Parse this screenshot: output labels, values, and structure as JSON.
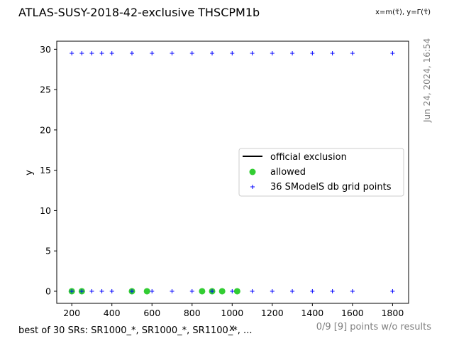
{
  "chart_data": {
    "type": "scatter",
    "title": "ATLAS-SUSY-2018-42-exclusive THSCPM1b",
    "xlabel": "x",
    "ylabel": "y",
    "xlim": [
      125,
      1880
    ],
    "ylim": [
      -1.5,
      31
    ],
    "xticks": [
      200,
      400,
      600,
      800,
      1000,
      1200,
      1400,
      1600,
      1800
    ],
    "yticks": [
      0,
      5,
      10,
      15,
      20,
      25,
      30
    ],
    "grid": false,
    "legend_position": "center-right",
    "series": [
      {
        "name": "official exclusion",
        "kind": "line",
        "color": "#000000",
        "points": []
      },
      {
        "name": "allowed",
        "kind": "marker-circle",
        "color": "#32cd32",
        "points": [
          [
            200,
            0
          ],
          [
            250,
            0
          ],
          [
            500,
            0
          ],
          [
            575,
            0
          ],
          [
            850,
            0
          ],
          [
            900,
            0
          ],
          [
            950,
            0
          ],
          [
            1025,
            0
          ]
        ]
      },
      {
        "name": "36 SModelS db grid points",
        "kind": "marker-plus",
        "color": "#0000ff",
        "points": [
          [
            200,
            0
          ],
          [
            250,
            0
          ],
          [
            300,
            0
          ],
          [
            350,
            0
          ],
          [
            400,
            0
          ],
          [
            500,
            0
          ],
          [
            600,
            0
          ],
          [
            700,
            0
          ],
          [
            800,
            0
          ],
          [
            900,
            0
          ],
          [
            1000,
            0
          ],
          [
            1100,
            0
          ],
          [
            1200,
            0
          ],
          [
            1300,
            0
          ],
          [
            1400,
            0
          ],
          [
            1500,
            0
          ],
          [
            1600,
            0
          ],
          [
            1800,
            0
          ],
          [
            200,
            29.5
          ],
          [
            250,
            29.5
          ],
          [
            300,
            29.5
          ],
          [
            350,
            29.5
          ],
          [
            400,
            29.5
          ],
          [
            500,
            29.5
          ],
          [
            600,
            29.5
          ],
          [
            700,
            29.5
          ],
          [
            800,
            29.5
          ],
          [
            900,
            29.5
          ],
          [
            1000,
            29.5
          ],
          [
            1100,
            29.5
          ],
          [
            1200,
            29.5
          ],
          [
            1300,
            29.5
          ],
          [
            1400,
            29.5
          ],
          [
            1500,
            29.5
          ],
          [
            1600,
            29.5
          ],
          [
            1800,
            29.5
          ]
        ]
      }
    ],
    "corner_note": "x=m(τ̃), y=Γ(τ̃)",
    "datestamp": "Jun 24, 2024, 16:54",
    "footer_left": "best of 30 SRs: SR1000_*, SR1000_*, SR1100_*, ...",
    "footer_right": "0/9 [9] points w/o results"
  }
}
